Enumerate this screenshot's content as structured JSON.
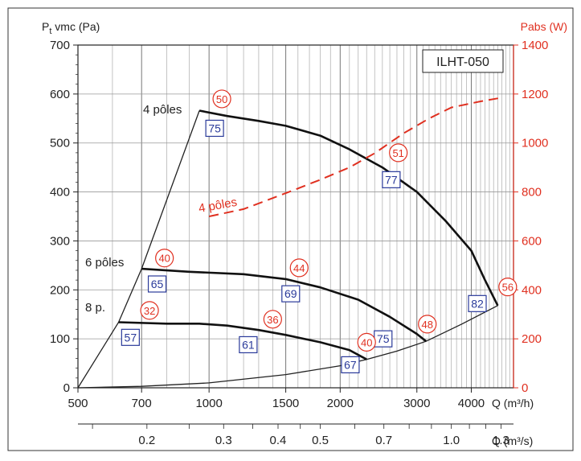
{
  "chart_data": {
    "type": "line",
    "title": "ILHT-050",
    "y_left": {
      "label_main": "P",
      "label_sub": "t",
      "label_rest": " vmc (Pa)",
      "range": [
        0,
        700
      ],
      "ticks": [
        0,
        100,
        200,
        300,
        400,
        500,
        600,
        700
      ]
    },
    "y_right": {
      "label": "Pabs (W)",
      "range": [
        0,
        1400
      ],
      "ticks": [
        0,
        200,
        400,
        600,
        800,
        1000,
        1200,
        1400
      ]
    },
    "x_m3h": {
      "label": "Q (m³/h)",
      "scale": "log",
      "range": [
        500,
        5000
      ],
      "tick_labels": [
        "500",
        "700",
        "1000",
        "1500",
        "2000",
        "3000",
        "4000"
      ],
      "tick_values": [
        500,
        700,
        1000,
        1500,
        2000,
        3000,
        4000
      ]
    },
    "x_m3s": {
      "label": "Q (m³/s)",
      "tick_labels": [
        "0.2",
        "0.3",
        "0.4",
        "0.5",
        "0.7",
        "1.0",
        "1.3"
      ],
      "tick_values": [
        0.2,
        0.3,
        0.4,
        0.5,
        0.7,
        1.0,
        1.3
      ]
    },
    "grid": true,
    "pressure_curves": [
      {
        "name": "4 pôles",
        "points": [
          [
            950,
            566
          ],
          [
            1100,
            555
          ],
          [
            1300,
            545
          ],
          [
            1500,
            535
          ],
          [
            1800,
            515
          ],
          [
            2100,
            487
          ],
          [
            2500,
            450
          ],
          [
            3000,
            400
          ],
          [
            3500,
            340
          ],
          [
            4000,
            280
          ],
          [
            4300,
            220
          ],
          [
            4600,
            168
          ]
        ]
      },
      {
        "name": "6 pôles",
        "points": [
          [
            700,
            243
          ],
          [
            900,
            237
          ],
          [
            1200,
            232
          ],
          [
            1500,
            222
          ],
          [
            1800,
            205
          ],
          [
            2200,
            180
          ],
          [
            2600,
            145
          ],
          [
            3000,
            110
          ],
          [
            3150,
            95
          ]
        ]
      },
      {
        "name": "8 p.",
        "points": [
          [
            620,
            134
          ],
          [
            800,
            131
          ],
          [
            950,
            131
          ],
          [
            1100,
            127
          ],
          [
            1300,
            118
          ],
          [
            1500,
            108
          ],
          [
            1800,
            93
          ],
          [
            2100,
            77
          ],
          [
            2300,
            58
          ]
        ]
      }
    ],
    "system_curve": {
      "points": [
        [
          500,
          0
        ],
        [
          700,
          3
        ],
        [
          1000,
          10
        ],
        [
          1500,
          27
        ],
        [
          2000,
          45
        ],
        [
          2300,
          58
        ],
        [
          2700,
          75
        ],
        [
          3150,
          95
        ],
        [
          3800,
          130
        ],
        [
          4600,
          168
        ]
      ]
    },
    "operating_limit": {
      "points": [
        [
          500,
          0
        ],
        [
          620,
          134
        ],
        [
          700,
          243
        ],
        [
          950,
          566
        ]
      ]
    },
    "power_curve": {
      "name": "4 pôles",
      "points": [
        [
          1000,
          700
        ],
        [
          1200,
          730
        ],
        [
          1500,
          795
        ],
        [
          1800,
          850
        ],
        [
          2100,
          900
        ],
        [
          2400,
          958
        ],
        [
          2800,
          1040
        ],
        [
          3200,
          1100
        ],
        [
          3600,
          1145
        ],
        [
          4200,
          1170
        ],
        [
          4700,
          1185
        ]
      ]
    },
    "annotations": {
      "efficiency_blue": [
        {
          "value": "75",
          "q": 1030,
          "p": 530
        },
        {
          "value": "77",
          "q": 2620,
          "p": 425
        },
        {
          "value": "65",
          "q": 760,
          "p": 212
        },
        {
          "value": "69",
          "q": 1540,
          "p": 192
        },
        {
          "value": "82",
          "q": 4130,
          "p": 172
        },
        {
          "value": "57",
          "q": 660,
          "p": 103
        },
        {
          "value": "61",
          "q": 1230,
          "p": 88
        },
        {
          "value": "75",
          "q": 2510,
          "p": 100
        },
        {
          "value": "67",
          "q": 2110,
          "p": 47
        }
      ],
      "noise_red": [
        {
          "value": "50",
          "q": 1070,
          "p": 590
        },
        {
          "value": "51",
          "q": 2720,
          "p": 480
        },
        {
          "value": "40",
          "q": 790,
          "p": 265
        },
        {
          "value": "44",
          "q": 1610,
          "p": 245
        },
        {
          "value": "56",
          "q": 4850,
          "p": 206
        },
        {
          "value": "32",
          "q": 730,
          "p": 158
        },
        {
          "value": "36",
          "q": 1400,
          "p": 140
        },
        {
          "value": "48",
          "q": 3170,
          "p": 130
        },
        {
          "value": "40",
          "q": 2300,
          "p": 93
        }
      ]
    }
  }
}
